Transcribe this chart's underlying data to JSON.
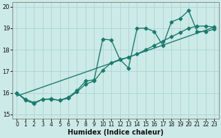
{
  "title": "",
  "xlabel": "Humidex (Indice chaleur)",
  "ylabel": "",
  "bg_color": "#cceae7",
  "grid_color": "#aed4d0",
  "line_color": "#1a7a6e",
  "xlim": [
    -0.5,
    23.5
  ],
  "ylim": [
    14.8,
    20.2
  ],
  "xticks": [
    0,
    1,
    2,
    3,
    4,
    5,
    6,
    7,
    8,
    9,
    10,
    11,
    12,
    13,
    14,
    15,
    16,
    17,
    18,
    19,
    20,
    21,
    22,
    23
  ],
  "yticks": [
    15,
    16,
    17,
    18,
    19,
    20
  ],
  "line1_x": [
    0,
    1,
    2,
    3,
    4,
    5,
    6,
    7,
    8,
    9,
    10,
    11,
    12,
    13,
    14,
    15,
    16,
    17,
    18,
    19,
    20,
    21,
    22,
    23
  ],
  "line1_y": [
    16.0,
    15.7,
    15.55,
    15.7,
    15.7,
    15.65,
    15.75,
    16.05,
    16.4,
    16.55,
    17.05,
    17.4,
    17.55,
    17.65,
    17.8,
    18.0,
    18.2,
    18.4,
    18.6,
    18.8,
    19.0,
    19.1,
    19.1,
    19.05
  ],
  "line2_x": [
    0,
    1,
    2,
    3,
    4,
    5,
    6,
    7,
    8,
    9,
    10,
    11,
    12,
    13,
    14,
    15,
    16,
    17,
    18,
    19,
    20,
    21,
    22,
    23
  ],
  "line2_y": [
    16.0,
    15.65,
    15.5,
    15.7,
    15.72,
    15.65,
    15.8,
    16.1,
    16.55,
    16.6,
    18.5,
    18.45,
    17.55,
    17.15,
    19.0,
    19.0,
    18.85,
    18.2,
    19.3,
    19.45,
    19.82,
    18.85,
    18.85,
    18.95
  ],
  "line3_x": [
    0,
    23
  ],
  "line3_y": [
    15.85,
    19.05
  ],
  "marker": "D",
  "markersize": 2.5,
  "linewidth": 1.0
}
